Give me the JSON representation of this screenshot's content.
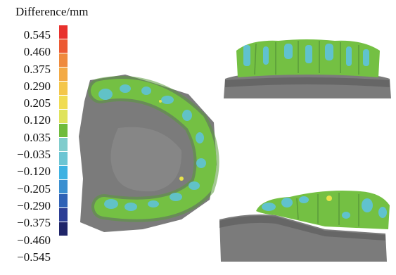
{
  "legend": {
    "title": "Difference/mm",
    "labels": [
      "0.545",
      "0.460",
      "0.375",
      "0.290",
      "0.205",
      "0.120",
      "0.035",
      "−0.035",
      "−0.120",
      "−0.205",
      "−0.290",
      "−0.375",
      "−0.460",
      "−0.545"
    ],
    "colors": [
      "#e8312d",
      "#ec5a33",
      "#ef8a3d",
      "#f3aa45",
      "#f4c64a",
      "#f0dc52",
      "#dfe35c",
      "#6fbb3c",
      "#80cccc",
      "#6cc5d3",
      "#3eb2e2",
      "#3a8fd0",
      "#2f62b6",
      "#2c3e95",
      "#1f2569"
    ]
  },
  "views": {
    "occlusal": "occlusal-view",
    "upper": "buccal-view-upper",
    "lower": "buccal-view-lower"
  },
  "palette": {
    "gum": "#7b7b7b",
    "gum_dark": "#595959",
    "tooth_green": "#74c043",
    "tooth_blue": "#5fc3d6",
    "tooth_yellow": "#e8e34a"
  }
}
